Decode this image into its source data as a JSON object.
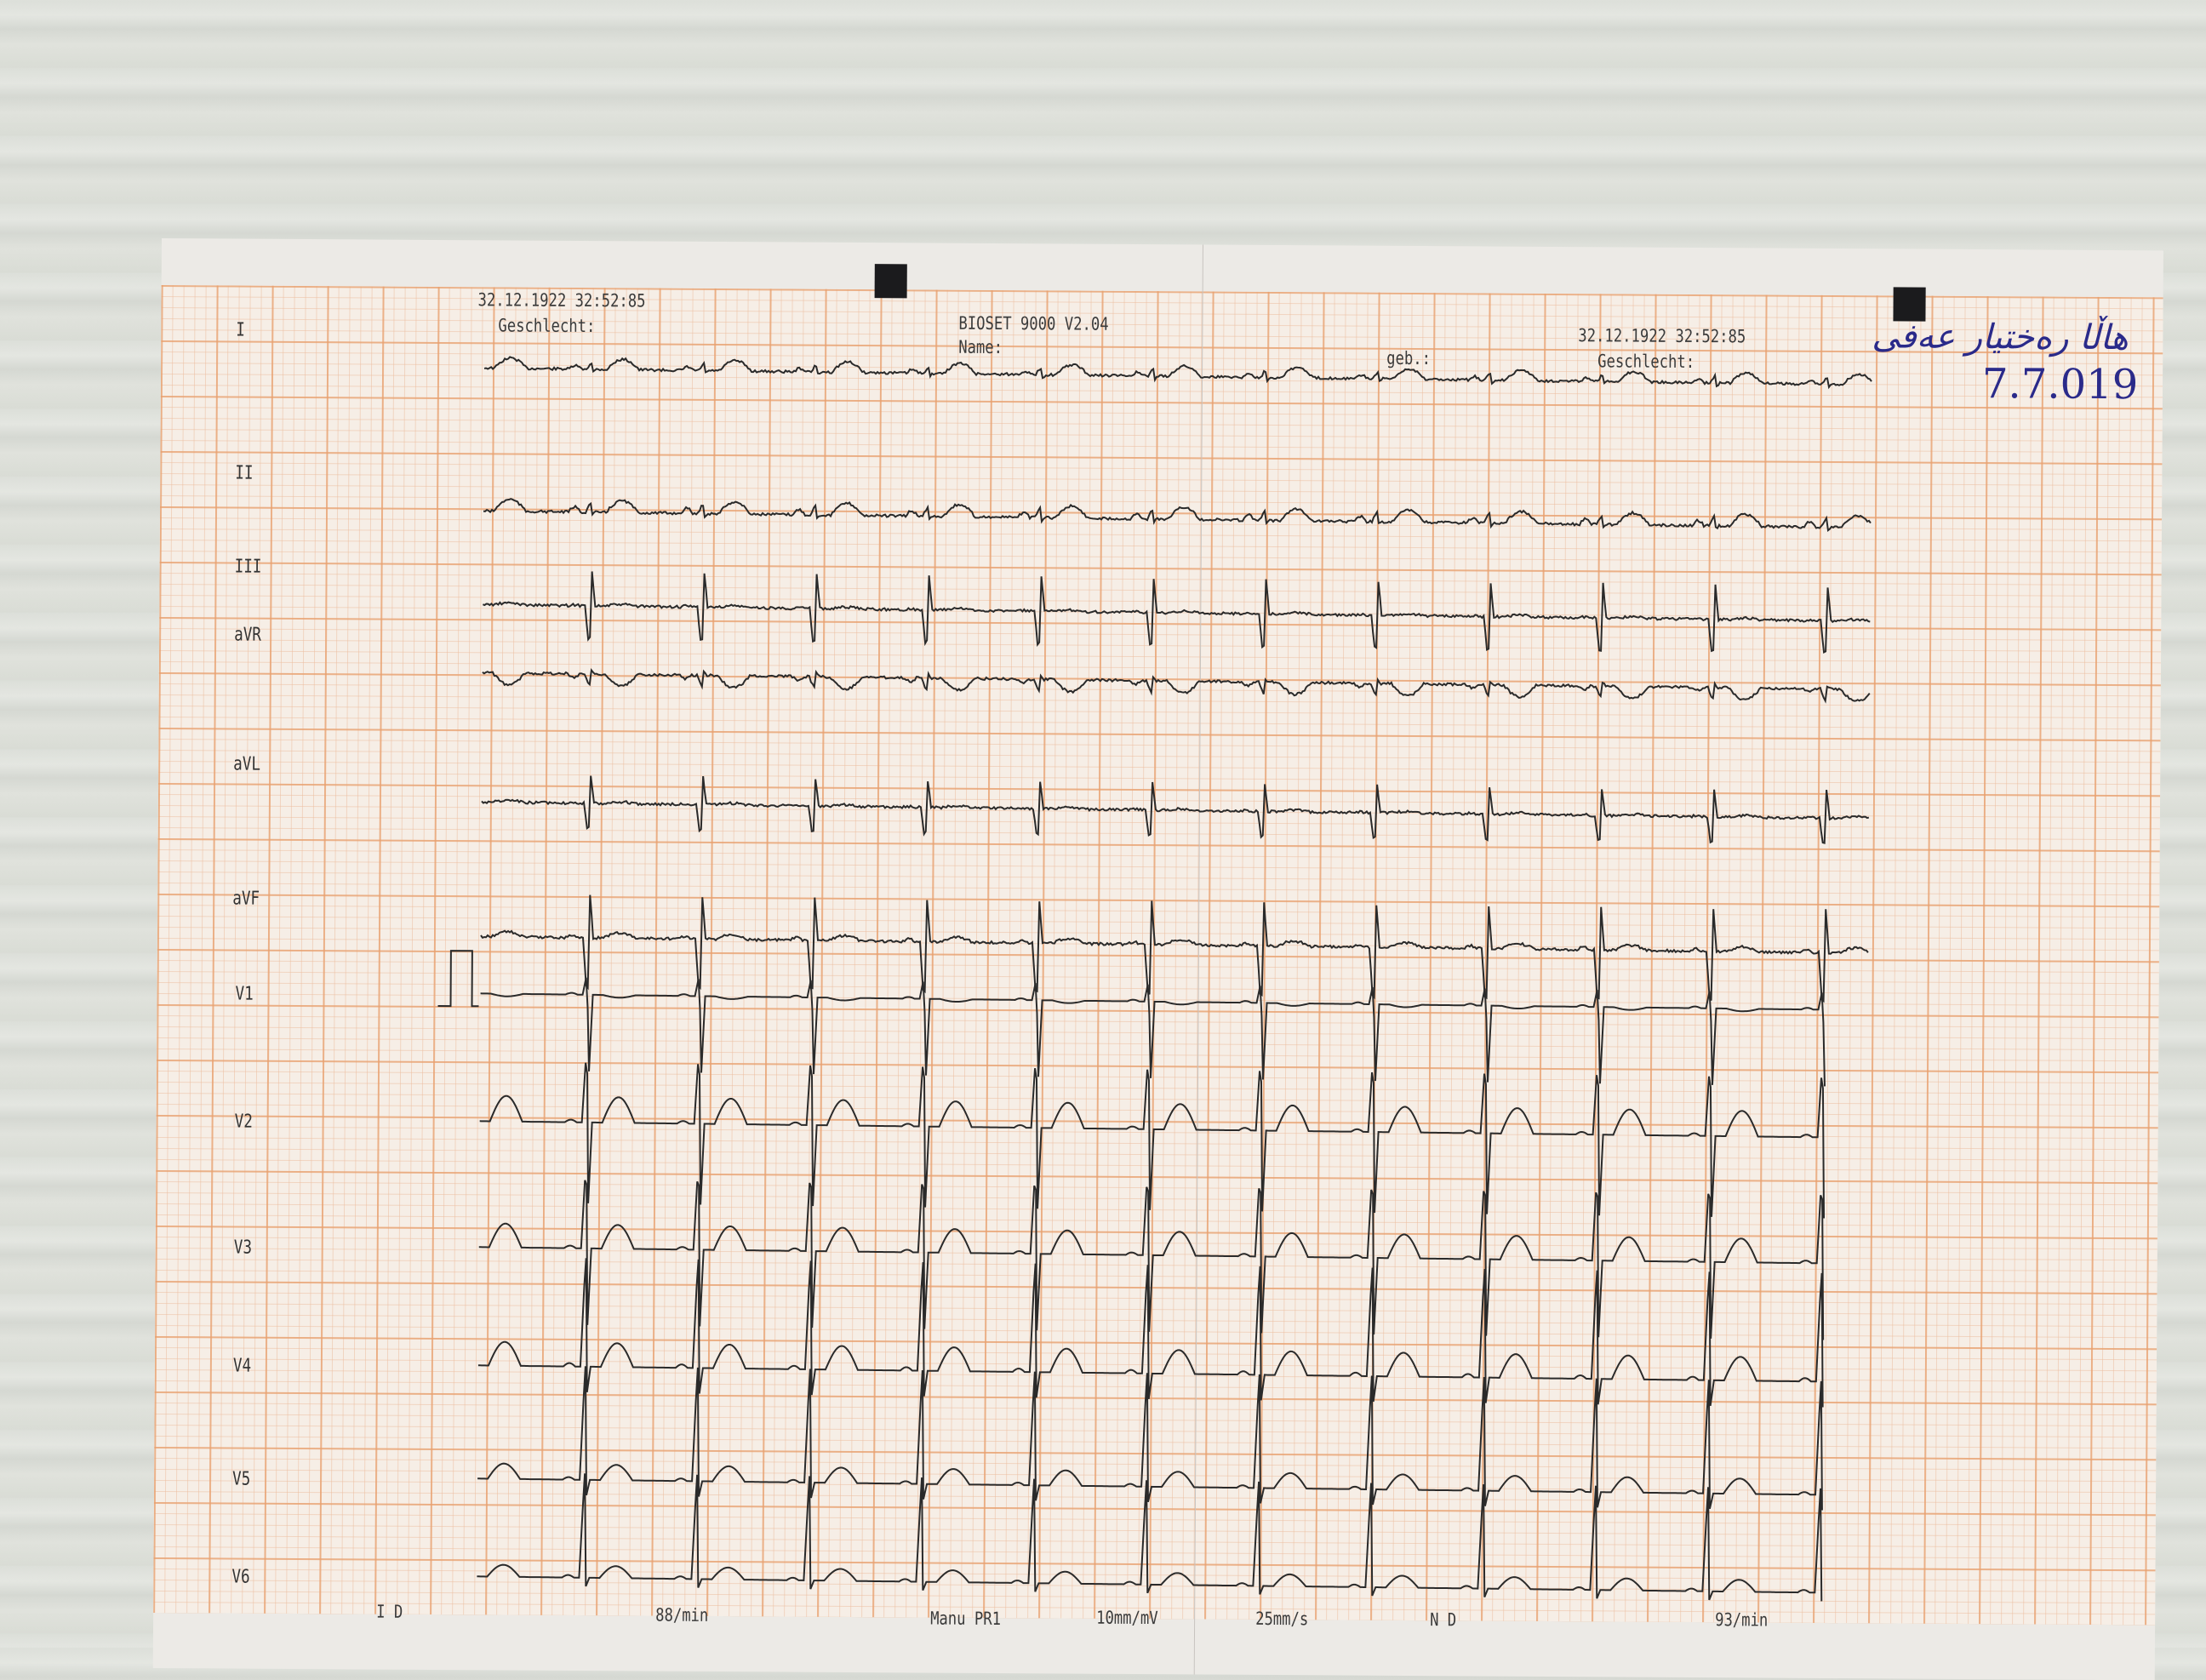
{
  "header": {
    "timestamp_left": "32.12.1922 32:52:85",
    "sex_left": "Geschlecht:",
    "device": "BIOSET 9000 V2.04",
    "name_label": "Name:",
    "birth_label": "geb.:",
    "timestamp_right": "32.12.1922 32:52:85",
    "sex_right": "Geschlecht:"
  },
  "handwritten_note": {
    "name": "هاڵا رەختیار عەفی",
    "date": "7.7.019"
  },
  "leads": [
    "I",
    "II",
    "III",
    "aVR",
    "aVL",
    "aVF",
    "V1",
    "V2",
    "V3",
    "V4",
    "V5",
    "V6"
  ],
  "footer": {
    "mode": "I D",
    "rate_left": "88/min",
    "program": "Manu PR1",
    "gain": "10mm/mV",
    "speed": "25mm/s",
    "filter": "N D",
    "rate_right": "93/min"
  },
  "colors": {
    "grid": "#e8a06e",
    "paper": "#f6eee6",
    "trace": "#2a2a2a",
    "ink": "#2a2a8a"
  }
}
